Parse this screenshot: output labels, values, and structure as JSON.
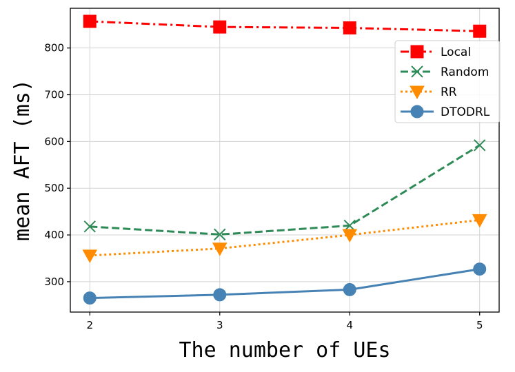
{
  "chart_data": {
    "type": "line",
    "x": [
      2,
      3,
      4,
      5
    ],
    "xlabel": "The number of UEs",
    "ylabel": "mean AFT (ms)",
    "xlim": [
      1.85,
      5.15
    ],
    "ylim": [
      235,
      885
    ],
    "xticks": [
      "2",
      "3",
      "4",
      "5"
    ],
    "yticks": [
      "300",
      "400",
      "500",
      "600",
      "700",
      "800"
    ],
    "grid": true,
    "legend_position": "upper-right",
    "series": [
      {
        "name": "Local",
        "values": [
          857,
          845,
          843,
          836
        ],
        "color": "#ff0000",
        "dash": "dashdot",
        "marker": "square"
      },
      {
        "name": "Random",
        "values": [
          418,
          401,
          420,
          592
        ],
        "color": "#2e8b57",
        "dash": "dashed",
        "marker": "x"
      },
      {
        "name": "RR",
        "values": [
          356,
          371,
          400,
          432
        ],
        "color": "#ff8c00",
        "dash": "dotted",
        "marker": "triangle-down"
      },
      {
        "name": "DTODRL",
        "values": [
          265,
          272,
          283,
          327
        ],
        "color": "#4682b4",
        "dash": "solid",
        "marker": "circle"
      }
    ]
  }
}
